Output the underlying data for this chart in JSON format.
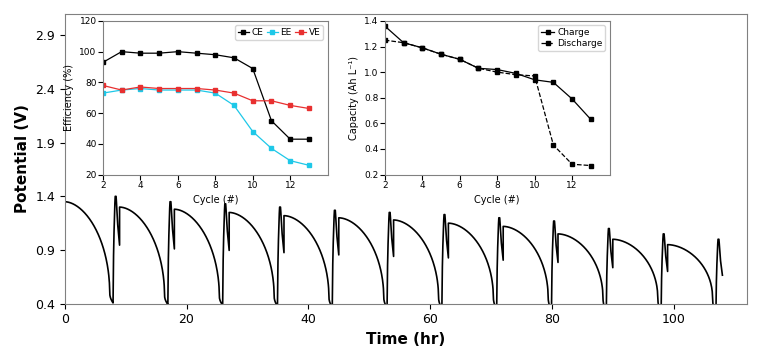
{
  "main_ylabel": "Potential (V)",
  "main_xlabel": "Time (hr)",
  "main_xlim": [
    0,
    112
  ],
  "main_ylim": [
    0.4,
    3.1
  ],
  "main_yticks": [
    0.4,
    0.9,
    1.4,
    1.9,
    2.4,
    2.9
  ],
  "main_xticks": [
    0,
    20,
    40,
    60,
    80,
    100
  ],
  "eff_cycles": [
    2,
    3,
    4,
    5,
    6,
    7,
    8,
    9,
    10,
    11,
    12,
    13
  ],
  "CE": [
    93,
    100,
    99,
    99,
    100,
    99,
    98,
    96,
    89,
    55,
    43,
    43
  ],
  "EE": [
    73,
    75,
    76,
    75,
    75,
    75,
    73,
    65,
    48,
    37,
    29,
    26
  ],
  "VE": [
    78,
    75,
    77,
    76,
    76,
    76,
    75,
    73,
    68,
    68,
    65,
    63
  ],
  "eff_xlim": [
    2,
    14
  ],
  "eff_ylim": [
    20,
    120
  ],
  "eff_yticks": [
    20,
    40,
    60,
    80,
    100,
    120
  ],
  "eff_xticks": [
    2,
    4,
    6,
    8,
    10,
    12
  ],
  "eff_xlabel": "Cycle (#)",
  "eff_ylabel": "Efficiency (%)",
  "cap_cycles": [
    2,
    3,
    4,
    5,
    6,
    7,
    8,
    9,
    10,
    11,
    12,
    13
  ],
  "charge_cap": [
    1.36,
    1.23,
    1.19,
    1.14,
    1.1,
    1.03,
    1.02,
    0.99,
    0.94,
    0.92,
    0.79,
    0.63
  ],
  "discharge_cap": [
    1.25,
    1.23,
    1.19,
    1.14,
    1.1,
    1.03,
    1.0,
    0.98,
    0.97,
    0.43,
    0.28,
    0.27
  ],
  "cap_xlim": [
    2,
    14
  ],
  "cap_ylim": [
    0.2,
    1.4
  ],
  "cap_yticks": [
    0.2,
    0.4,
    0.6,
    0.8,
    1.0,
    1.2,
    1.4
  ],
  "cap_xticks": [
    2,
    4,
    6,
    8,
    10,
    12
  ],
  "cap_xlabel": "Cycle (#)",
  "cap_ylabel": "Capacity (Ah L⁻¹)",
  "fig_width": 7.62,
  "fig_height": 3.49,
  "fig_dpi": 100
}
